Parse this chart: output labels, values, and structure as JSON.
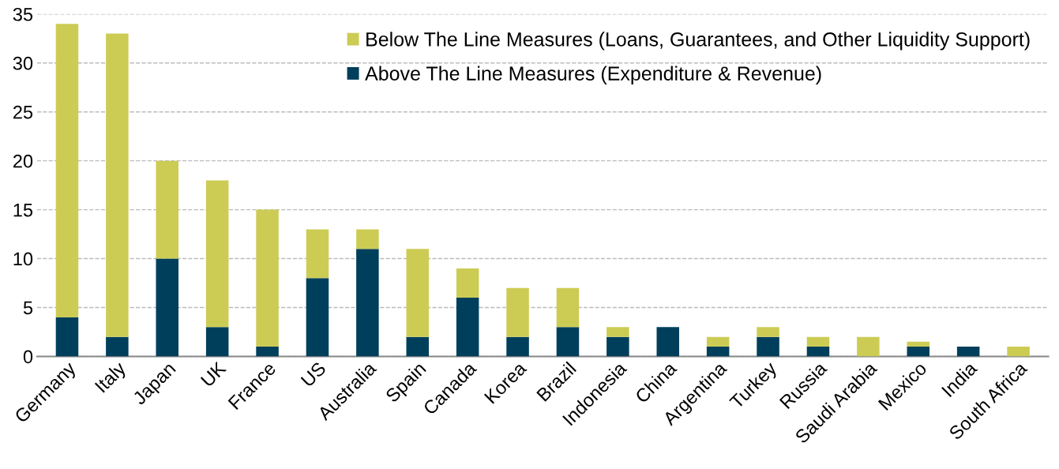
{
  "chart_data": {
    "type": "bar",
    "stacked": true,
    "categories": [
      "Germany",
      "Italy",
      "Japan",
      "UK",
      "France",
      "US",
      "Australia",
      "Spain",
      "Canada",
      "Korea",
      "Brazil",
      "Indonesia",
      "China",
      "Argentina",
      "Turkey",
      "Russia",
      "Saudi Arabia",
      "Mexico",
      "India",
      "South Africa"
    ],
    "series": [
      {
        "name": "Above The Line Measures (Expenditure & Revenue)",
        "color": "#003f5c",
        "values": [
          4,
          2,
          10,
          3,
          1,
          8,
          11,
          2,
          6,
          2,
          3,
          2,
          3,
          1,
          2,
          1,
          0,
          1,
          1,
          0
        ]
      },
      {
        "name": "Below The Line Measures (Loans, Guarantees, and Other Liquidity Support)",
        "color": "#cccc55",
        "values": [
          30,
          31,
          10,
          15,
          14,
          5,
          2,
          9,
          3,
          5,
          4,
          1,
          0,
          1,
          1,
          1,
          2,
          0.5,
          0,
          1
        ]
      }
    ],
    "ylim": [
      0,
      35
    ],
    "yticks": [
      0,
      5,
      10,
      15,
      20,
      25,
      30,
      35
    ],
    "grid": "y",
    "legend": "top"
  }
}
